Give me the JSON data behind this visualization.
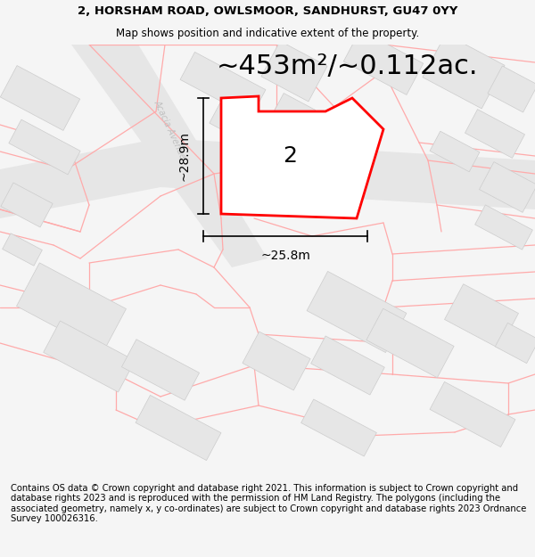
{
  "title_line1": "2, HORSHAM ROAD, OWLSMOOR, SANDHURST, GU47 0YY",
  "title_line2": "Map shows position and indicative extent of the property.",
  "area_text": "~453m²/~0.112ac.",
  "property_number": "2",
  "dim_height": "~28.9m",
  "dim_width": "~25.8m",
  "footer_text": "Contains OS data © Crown copyright and database right 2021. This information is subject to Crown copyright and database rights 2023 and is reproduced with the permission of HM Land Registry. The polygons (including the associated geometry, namely x, y co-ordinates) are subject to Crown copyright and database rights 2023 Ordnance Survey 100026316.",
  "bg_color": "#f5f5f5",
  "map_bg": "#ffffff",
  "building_fill": "#e6e6e6",
  "building_edge": "#cccccc",
  "road_fill": "#e8e8e8",
  "property_color": "#ff0000",
  "boundary_color": "#ffaaaa",
  "dim_color": "#000000",
  "title_fontsize": 9.5,
  "subtitle_fontsize": 8.5,
  "area_fontsize": 22,
  "property_num_fontsize": 18,
  "dim_fontsize": 10,
  "street_fontsize": 8,
  "footer_fontsize": 7.2
}
